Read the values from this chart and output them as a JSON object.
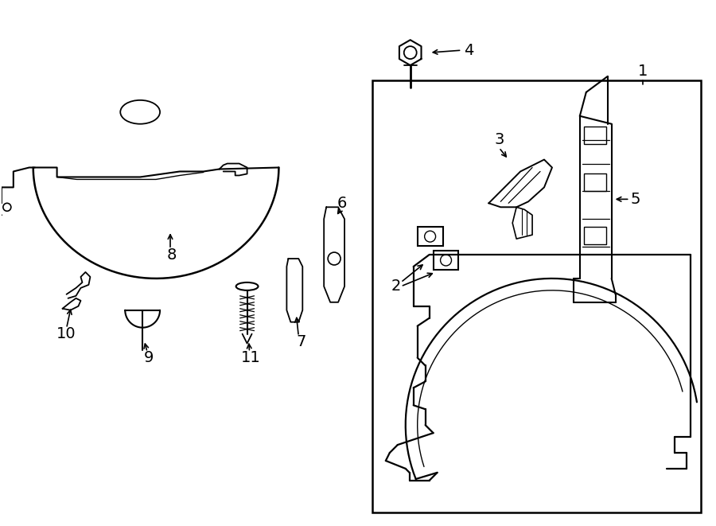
{
  "background_color": "#ffffff",
  "line_color": "#000000",
  "line_width": 1.5,
  "fig_width": 9.0,
  "fig_height": 6.61,
  "dpi": 100,
  "label_fontsize": 12
}
